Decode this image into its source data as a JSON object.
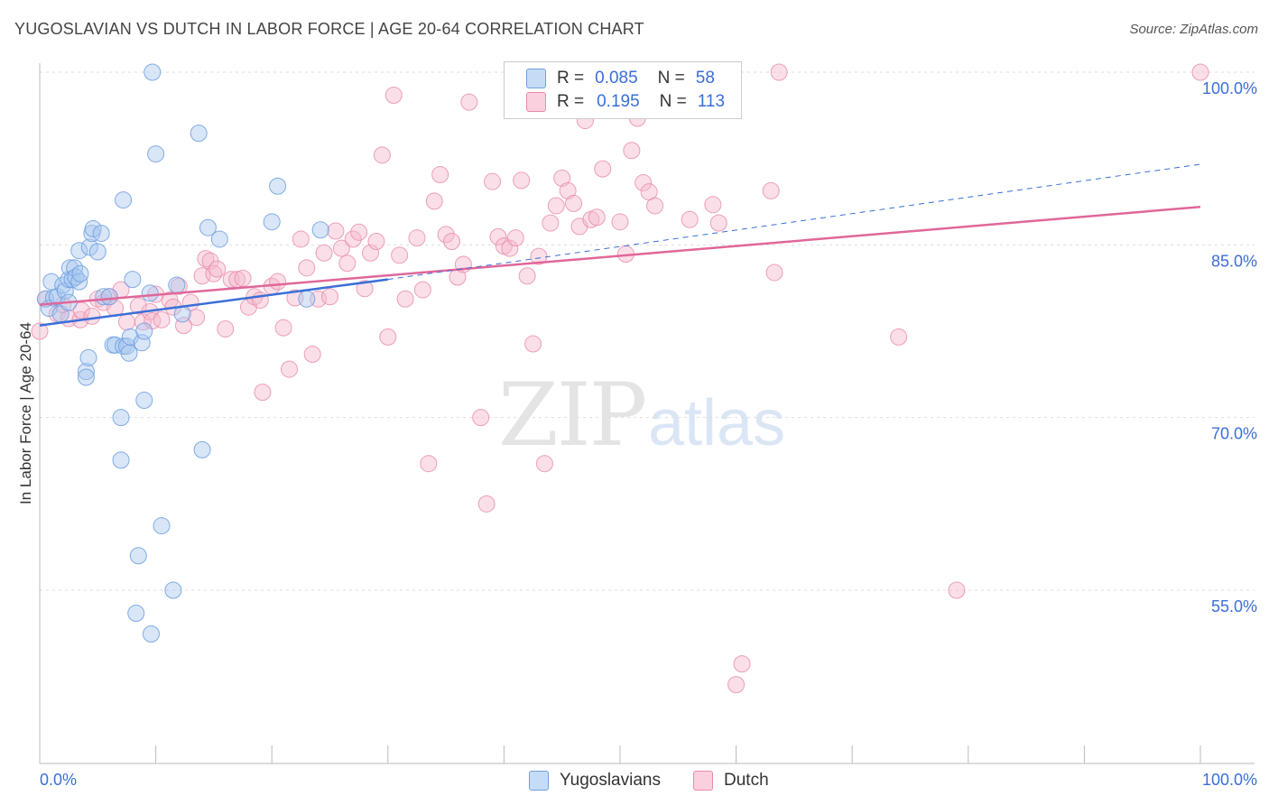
{
  "header": {
    "title": "YUGOSLAVIAN VS DUTCH IN LABOR FORCE | AGE 20-64 CORRELATION CHART",
    "source": "Source: ZipAtlas.com"
  },
  "watermark": {
    "zip": "ZIP",
    "atlas": "atlas"
  },
  "legend": {
    "rows": [
      {
        "r_label": "R =",
        "r_value": "0.085",
        "n_label": "N =",
        "n_value": "58",
        "color": "#a9c8f0"
      },
      {
        "r_label": "R =",
        "r_value": "0.195",
        "n_label": "N =",
        "n_value": "113",
        "color": "#f5b8cc"
      }
    ],
    "bottom": [
      {
        "label": "Yugoslavians",
        "color": "#a9c8f0"
      },
      {
        "label": "Dutch",
        "color": "#f5b8cc"
      }
    ]
  },
  "chart_data": {
    "type": "scatter",
    "title": "YUGOSLAVIAN VS DUTCH IN LABOR FORCE | AGE 20-64 CORRELATION CHART",
    "xlabel": "",
    "ylabel": "In Labor Force | Age 20-64",
    "xlim": [
      0,
      100
    ],
    "ylim": [
      40,
      102
    ],
    "x_tick_labels": [
      "0.0%",
      "100.0%"
    ],
    "y_tick_labels": [
      "55.0%",
      "70.0%",
      "85.0%",
      "100.0%"
    ],
    "y_ticks": [
      55,
      70,
      85,
      100
    ],
    "grid": true,
    "legend_position": "top-center",
    "colors": {
      "yugoslavians": "#a9c8f0",
      "yugoslavians_edge": "#6f9fe0",
      "yugoslavians_line": "#3a6fd8",
      "dutch": "#f5b8cc",
      "dutch_edge": "#e88aaa",
      "dutch_line": "#e0679a"
    },
    "series": [
      {
        "name": "Yugoslavians",
        "regression": {
          "x": [
            0,
            30
          ],
          "y": [
            78.0,
            82.0
          ]
        },
        "points": [
          [
            0.5,
            80.3
          ],
          [
            0.8,
            79.5
          ],
          [
            1.0,
            81.8
          ],
          [
            1.2,
            80.4
          ],
          [
            1.5,
            80.5
          ],
          [
            1.8,
            79.0
          ],
          [
            2.0,
            81.5
          ],
          [
            2.2,
            81.0
          ],
          [
            2.5,
            80.0
          ],
          [
            2.5,
            82.0
          ],
          [
            2.6,
            83.0
          ],
          [
            2.8,
            82.0
          ],
          [
            3.0,
            83.0
          ],
          [
            3.1,
            82.2
          ],
          [
            3.4,
            81.8
          ],
          [
            3.5,
            82.5
          ],
          [
            3.4,
            84.5
          ],
          [
            4.0,
            74.0
          ],
          [
            4.0,
            73.5
          ],
          [
            4.2,
            75.2
          ],
          [
            4.3,
            84.8
          ],
          [
            4.5,
            86.0
          ],
          [
            4.6,
            86.4
          ],
          [
            5.0,
            84.4
          ],
          [
            5.3,
            86.0
          ],
          [
            5.5,
            80.5
          ],
          [
            6.0,
            80.5
          ],
          [
            6.3,
            76.3
          ],
          [
            6.5,
            76.3
          ],
          [
            7.0,
            70.0
          ],
          [
            7.2,
            88.9
          ],
          [
            7.0,
            66.3
          ],
          [
            7.2,
            76.2
          ],
          [
            7.5,
            76.2
          ],
          [
            7.7,
            75.6
          ],
          [
            7.8,
            77.0
          ],
          [
            8.0,
            82.0
          ],
          [
            8.3,
            53.0
          ],
          [
            8.5,
            58.0
          ],
          [
            8.8,
            76.5
          ],
          [
            9.0,
            77.5
          ],
          [
            9.0,
            71.5
          ],
          [
            9.5,
            80.8
          ],
          [
            9.6,
            51.2
          ],
          [
            9.7,
            100.0
          ],
          [
            10.0,
            92.9
          ],
          [
            10.5,
            60.6
          ],
          [
            11.5,
            55.0
          ],
          [
            11.8,
            81.5
          ],
          [
            12.3,
            79.0
          ],
          [
            13.7,
            94.7
          ],
          [
            14.0,
            67.2
          ],
          [
            14.5,
            86.5
          ],
          [
            15.5,
            85.5
          ],
          [
            20.0,
            87.0
          ],
          [
            20.5,
            90.1
          ],
          [
            23.0,
            80.3
          ],
          [
            24.2,
            86.3
          ]
        ]
      },
      {
        "name": "Dutch",
        "regression": {
          "x": [
            0,
            100
          ],
          "y": [
            79.8,
            88.3
          ]
        },
        "points": [
          [
            0.0,
            77.5
          ],
          [
            0.5,
            80.3
          ],
          [
            1.5,
            79.0
          ],
          [
            2.0,
            79.8
          ],
          [
            2.5,
            78.6
          ],
          [
            3.5,
            78.5
          ],
          [
            3.6,
            79.3
          ],
          [
            4.5,
            78.8
          ],
          [
            5.0,
            80.3
          ],
          [
            5.5,
            80.0
          ],
          [
            6.0,
            80.5
          ],
          [
            6.5,
            79.5
          ],
          [
            7.0,
            81.1
          ],
          [
            7.5,
            78.3
          ],
          [
            8.5,
            79.7
          ],
          [
            8.9,
            78.3
          ],
          [
            9.5,
            79.2
          ],
          [
            9.7,
            78.4
          ],
          [
            10.0,
            80.7
          ],
          [
            10.5,
            78.5
          ],
          [
            11.2,
            80.2
          ],
          [
            11.5,
            79.6
          ],
          [
            12.0,
            81.4
          ],
          [
            12.4,
            78.0
          ],
          [
            13.0,
            80.0
          ],
          [
            13.5,
            78.7
          ],
          [
            14.0,
            82.3
          ],
          [
            14.3,
            83.8
          ],
          [
            14.7,
            83.6
          ],
          [
            15.0,
            82.5
          ],
          [
            15.3,
            82.9
          ],
          [
            16.0,
            77.7
          ],
          [
            16.5,
            82.0
          ],
          [
            17.0,
            82.0
          ],
          [
            17.5,
            82.1
          ],
          [
            18.0,
            79.6
          ],
          [
            18.5,
            80.5
          ],
          [
            19.0,
            80.2
          ],
          [
            19.2,
            72.2
          ],
          [
            20.0,
            81.4
          ],
          [
            20.5,
            81.8
          ],
          [
            21.0,
            77.8
          ],
          [
            21.5,
            74.2
          ],
          [
            22.0,
            80.4
          ],
          [
            22.5,
            85.5
          ],
          [
            23.0,
            83.0
          ],
          [
            23.5,
            75.5
          ],
          [
            24.0,
            80.3
          ],
          [
            24.5,
            84.3
          ],
          [
            25.0,
            80.5
          ],
          [
            25.5,
            86.2
          ],
          [
            26.0,
            84.7
          ],
          [
            26.5,
            83.4
          ],
          [
            27.0,
            85.5
          ],
          [
            27.5,
            86.1
          ],
          [
            28.0,
            81.2
          ],
          [
            28.5,
            84.3
          ],
          [
            29.0,
            85.3
          ],
          [
            29.5,
            92.8
          ],
          [
            30.0,
            77.0
          ],
          [
            30.5,
            98.0
          ],
          [
            31.0,
            84.1
          ],
          [
            31.5,
            80.3
          ],
          [
            32.5,
            85.6
          ],
          [
            33.0,
            81.1
          ],
          [
            33.5,
            66.0
          ],
          [
            34.0,
            88.8
          ],
          [
            34.5,
            91.1
          ],
          [
            35.0,
            85.9
          ],
          [
            35.5,
            85.3
          ],
          [
            36.0,
            82.2
          ],
          [
            36.5,
            83.3
          ],
          [
            37.0,
            97.4
          ],
          [
            38.0,
            70.0
          ],
          [
            38.5,
            62.5
          ],
          [
            39.0,
            90.5
          ],
          [
            39.5,
            85.7
          ],
          [
            40.0,
            84.9
          ],
          [
            40.5,
            84.7
          ],
          [
            41.0,
            85.6
          ],
          [
            41.5,
            90.6
          ],
          [
            42.0,
            82.3
          ],
          [
            42.5,
            76.4
          ],
          [
            43.0,
            84.0
          ],
          [
            43.5,
            66.0
          ],
          [
            44.0,
            86.9
          ],
          [
            44.5,
            88.4
          ],
          [
            45.0,
            90.8
          ],
          [
            45.5,
            89.7
          ],
          [
            46.0,
            88.6
          ],
          [
            46.5,
            86.6
          ],
          [
            47.0,
            95.8
          ],
          [
            47.5,
            87.2
          ],
          [
            48.0,
            87.4
          ],
          [
            48.5,
            91.6
          ],
          [
            50.0,
            87.0
          ],
          [
            50.5,
            84.2
          ],
          [
            51.0,
            93.2
          ],
          [
            51.5,
            96.0
          ],
          [
            52.0,
            90.4
          ],
          [
            52.5,
            89.6
          ],
          [
            53.0,
            88.4
          ],
          [
            56.0,
            87.2
          ],
          [
            58.0,
            88.5
          ],
          [
            58.5,
            86.9
          ],
          [
            60.0,
            46.8
          ],
          [
            60.5,
            48.6
          ],
          [
            63.0,
            89.7
          ],
          [
            63.3,
            82.6
          ],
          [
            63.7,
            100.0
          ],
          [
            74.0,
            77.0
          ],
          [
            79.0,
            55.0
          ],
          [
            100.0,
            100.0
          ]
        ]
      }
    ]
  }
}
